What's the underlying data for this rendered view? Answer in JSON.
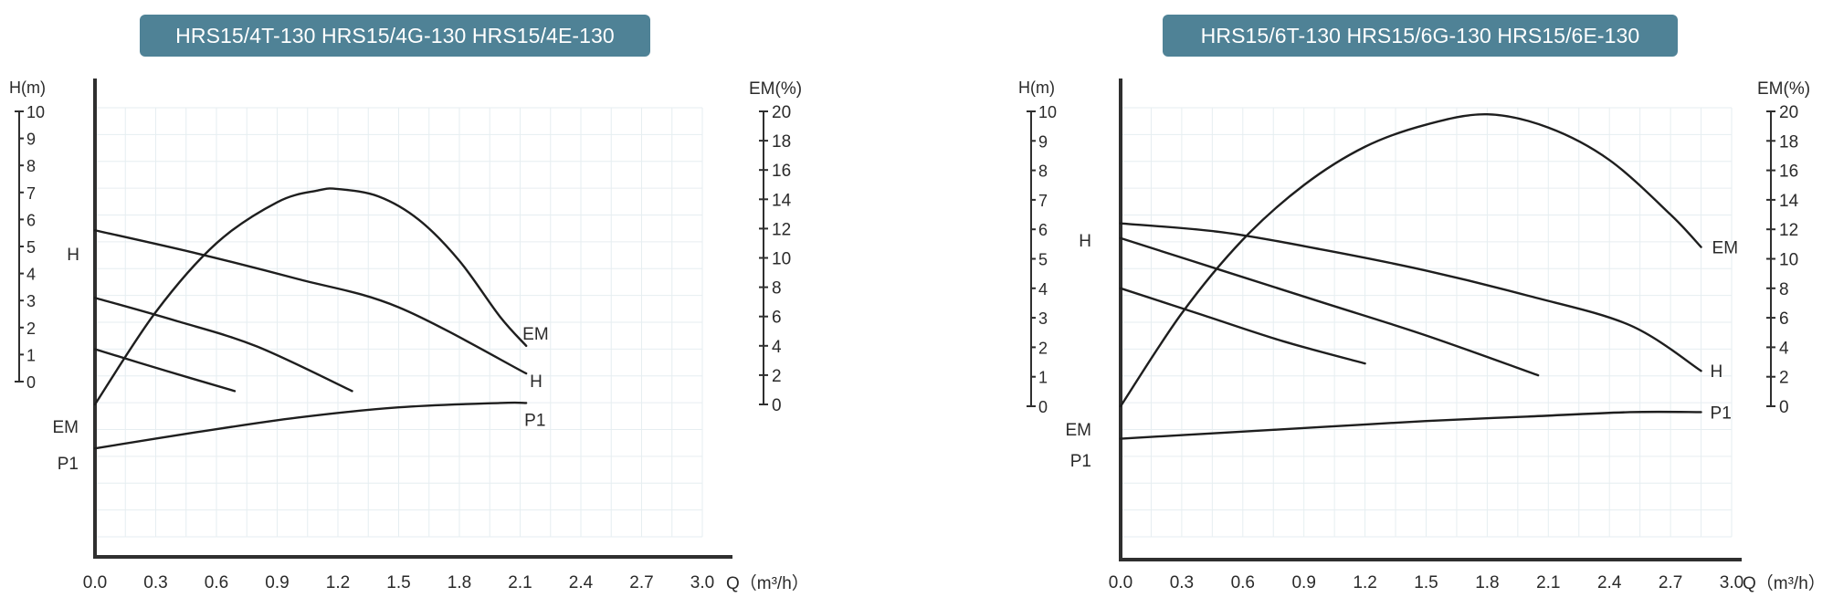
{
  "colors": {
    "banner": "#4f8296",
    "curve": "#1e1e1e",
    "axis": "#2f2f2f",
    "grid": "#e6eef1"
  },
  "chart_data": [
    {
      "type": "line",
      "title": "HRS15/4T-130 HRS15/4G-130 HRS15/4E-130",
      "xlabel": "Q（m³/h）",
      "ylabel_left": "H(m)",
      "ylabel_right": "EM(%)",
      "xlim": [
        0,
        3.0
      ],
      "x_ticks": [
        "0.0",
        "0.3",
        "0.6",
        "0.9",
        "1.2",
        "1.5",
        "1.8",
        "2.1",
        "2.4",
        "2.7",
        "3.0"
      ],
      "h_ticks": [
        "0",
        "1",
        "2",
        "3",
        "4",
        "5",
        "6",
        "7",
        "8",
        "9",
        "10"
      ],
      "em_ticks": [
        "0",
        "2",
        "4",
        "6",
        "8",
        "10",
        "12",
        "14",
        "16",
        "18",
        "20"
      ],
      "h_ylim": [
        0,
        10
      ],
      "em_ylim": [
        0,
        20
      ],
      "grid": true,
      "marker_labels": {
        "h": "H",
        "em": "EM",
        "p1": "P1"
      },
      "series": [
        {
          "name": "H",
          "axis": "h",
          "label_at": "end",
          "x": [
            0,
            0.5,
            1.0,
            1.5,
            2.13
          ],
          "y": [
            5.6,
            4.75,
            3.8,
            2.75,
            0.3
          ]
        },
        {
          "axis": "h",
          "x": [
            0,
            0.4,
            0.8,
            1.27
          ],
          "y": [
            3.1,
            2.25,
            1.3,
            -0.35
          ]
        },
        {
          "axis": "h",
          "x": [
            0,
            0.35,
            0.69
          ],
          "y": [
            1.2,
            0.4,
            -0.35
          ]
        },
        {
          "name": "EM",
          "axis": "em",
          "label_at": "end",
          "x": [
            0,
            0.3,
            0.6,
            0.9,
            1.1,
            1.2,
            1.4,
            1.6,
            1.8,
            2.0,
            2.13
          ],
          "y": [
            0,
            6.3,
            11.0,
            13.8,
            14.6,
            14.7,
            14.2,
            12.6,
            9.8,
            6.0,
            4.0
          ]
        },
        {
          "name": "P1",
          "axis": "em",
          "label_at": "end",
          "x": [
            0,
            0.5,
            1.0,
            1.5,
            2.0,
            2.13
          ],
          "y": [
            -3.0,
            -1.9,
            -0.9,
            -0.2,
            0.1,
            0.1
          ]
        }
      ]
    },
    {
      "type": "line",
      "title": "HRS15/6T-130 HRS15/6G-130 HRS15/6E-130",
      "xlabel": "Q（m³/h）",
      "ylabel_left": "H(m)",
      "ylabel_right": "EM(%)",
      "xlim": [
        0,
        3.0
      ],
      "x_ticks": [
        "0.0",
        "0.3",
        "0.6",
        "0.9",
        "1.2",
        "1.5",
        "1.8",
        "2.1",
        "2.4",
        "2.7",
        "3.0"
      ],
      "h_ticks": [
        "0",
        "1",
        "2",
        "3",
        "4",
        "5",
        "6",
        "7",
        "8",
        "9",
        "10"
      ],
      "em_ticks": [
        "0",
        "2",
        "4",
        "6",
        "8",
        "10",
        "12",
        "14",
        "16",
        "18",
        "20"
      ],
      "h_ylim": [
        0,
        10
      ],
      "em_ylim": [
        0,
        20
      ],
      "grid": true,
      "marker_labels": {
        "h": "H",
        "em": "EM",
        "p1": "P1"
      },
      "series": [
        {
          "name": "H",
          "axis": "h",
          "label_at": "end",
          "x": [
            0,
            0.5,
            1.0,
            1.5,
            2.0,
            2.5,
            2.85
          ],
          "y": [
            6.2,
            5.9,
            5.3,
            4.6,
            3.75,
            2.75,
            1.2
          ]
        },
        {
          "axis": "h",
          "x": [
            0,
            0.5,
            1.0,
            1.5,
            2.05
          ],
          "y": [
            5.7,
            4.6,
            3.5,
            2.4,
            1.05
          ]
        },
        {
          "axis": "h",
          "x": [
            0,
            0.4,
            0.8,
            1.2
          ],
          "y": [
            4.0,
            3.1,
            2.2,
            1.45
          ]
        },
        {
          "name": "EM",
          "axis": "em",
          "label_at": "end",
          "x": [
            0,
            0.3,
            0.6,
            0.9,
            1.2,
            1.5,
            1.8,
            2.1,
            2.4,
            2.7,
            2.85
          ],
          "y": [
            0,
            6.3,
            11.3,
            15.0,
            17.6,
            19.1,
            19.8,
            18.9,
            16.7,
            13.0,
            10.8
          ]
        },
        {
          "name": "P1",
          "axis": "em",
          "label_at": "end",
          "x": [
            0,
            0.5,
            1.0,
            1.5,
            2.0,
            2.5,
            2.85
          ],
          "y": [
            -2.2,
            -1.8,
            -1.4,
            -1.0,
            -0.7,
            -0.4,
            -0.4
          ]
        }
      ]
    }
  ]
}
